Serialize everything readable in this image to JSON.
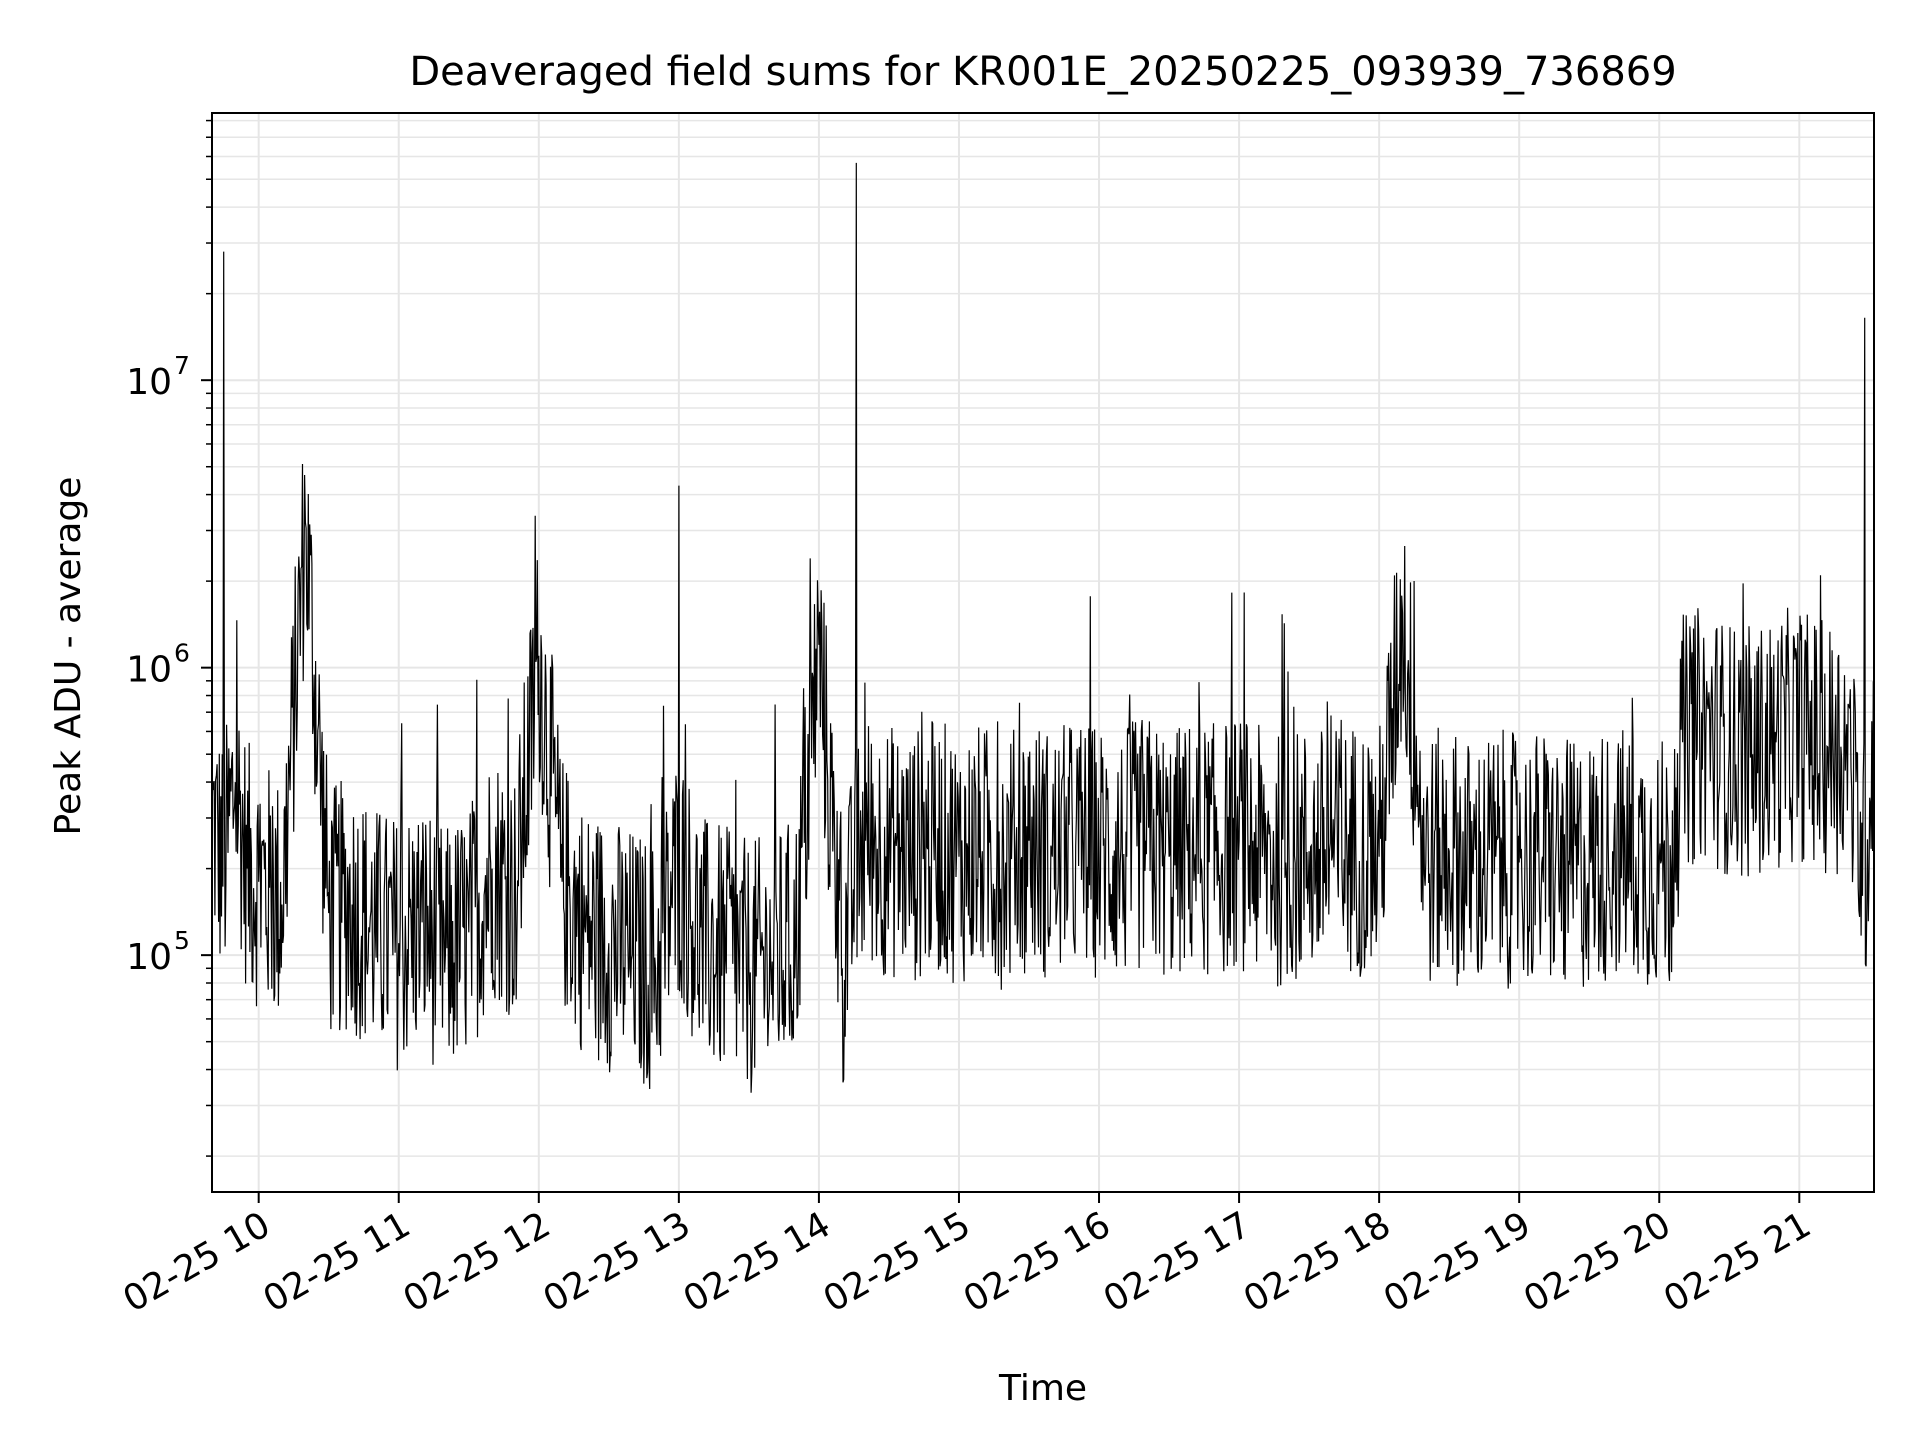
{
  "chart_data": {
    "type": "line",
    "title": "Deaveraged field sums for KR001E_20250225_093939_736869",
    "xlabel": "Time",
    "ylabel": "Peak ADU - average",
    "y_scale": "log",
    "ylim": [
      15000,
      85000000
    ],
    "xlim": [
      "2025-02-25 09:40",
      "2025-02-25 21:32"
    ],
    "x_ticks": [
      {
        "value": "2025-02-25 10:00",
        "label": "02-25 10"
      },
      {
        "value": "2025-02-25 11:00",
        "label": "02-25 11"
      },
      {
        "value": "2025-02-25 12:00",
        "label": "02-25 12"
      },
      {
        "value": "2025-02-25 13:00",
        "label": "02-25 13"
      },
      {
        "value": "2025-02-25 14:00",
        "label": "02-25 14"
      },
      {
        "value": "2025-02-25 15:00",
        "label": "02-25 15"
      },
      {
        "value": "2025-02-25 16:00",
        "label": "02-25 16"
      },
      {
        "value": "2025-02-25 17:00",
        "label": "02-25 17"
      },
      {
        "value": "2025-02-25 18:00",
        "label": "02-25 18"
      },
      {
        "value": "2025-02-25 19:00",
        "label": "02-25 19"
      },
      {
        "value": "2025-02-25 20:00",
        "label": "02-25 20"
      },
      {
        "value": "2025-02-25 21:00",
        "label": "02-25 21"
      }
    ],
    "y_ticks": [
      {
        "value": 100000,
        "base": "10",
        "exp": "5"
      },
      {
        "value": 1000000,
        "base": "10",
        "exp": "6"
      },
      {
        "value": 10000000,
        "base": "10",
        "exp": "7"
      }
    ],
    "grid": true,
    "line_color": "#000000",
    "grid_color": "#e6e6e6",
    "series": [
      {
        "x": [
          "2025-02-25 09:40",
          "2025-02-25 09:45",
          "2025-02-25 09:50",
          "2025-02-25 09:55",
          "2025-02-25 10:00",
          "2025-02-25 10:10",
          "2025-02-25 10:20",
          "2025-02-25 10:30",
          "2025-02-25 10:40",
          "2025-02-25 10:50",
          "2025-02-25 11:00",
          "2025-02-25 11:10",
          "2025-02-25 11:20",
          "2025-02-25 11:30",
          "2025-02-25 11:40",
          "2025-02-25 11:50",
          "2025-02-25 12:00",
          "2025-02-25 12:10",
          "2025-02-25 12:20",
          "2025-02-25 12:30",
          "2025-02-25 12:40",
          "2025-02-25 12:50",
          "2025-02-25 13:00",
          "2025-02-25 13:10",
          "2025-02-25 13:20",
          "2025-02-25 13:30",
          "2025-02-25 13:40",
          "2025-02-25 13:50",
          "2025-02-25 14:00",
          "2025-02-25 14:10",
          "2025-02-25 14:16",
          "2025-02-25 14:20",
          "2025-02-25 14:30",
          "2025-02-25 14:40",
          "2025-02-25 14:50",
          "2025-02-25 15:00",
          "2025-02-25 15:10",
          "2025-02-25 15:20",
          "2025-02-25 15:30",
          "2025-02-25 15:40",
          "2025-02-25 15:50",
          "2025-02-25 16:00",
          "2025-02-25 16:10",
          "2025-02-25 16:20",
          "2025-02-25 16:30",
          "2025-02-25 16:40",
          "2025-02-25 16:50",
          "2025-02-25 17:00",
          "2025-02-25 17:10",
          "2025-02-25 17:20",
          "2025-02-25 17:30",
          "2025-02-25 17:40",
          "2025-02-25 17:50",
          "2025-02-25 18:00",
          "2025-02-25 18:10",
          "2025-02-25 18:20",
          "2025-02-25 18:30",
          "2025-02-25 18:40",
          "2025-02-25 18:50",
          "2025-02-25 19:00",
          "2025-02-25 19:10",
          "2025-02-25 19:20",
          "2025-02-25 19:30",
          "2025-02-25 19:40",
          "2025-02-25 19:50",
          "2025-02-25 20:00",
          "2025-02-25 20:05",
          "2025-02-25 20:10",
          "2025-02-25 20:20",
          "2025-02-25 20:30",
          "2025-02-25 20:40",
          "2025-02-25 20:50",
          "2025-02-25 21:00",
          "2025-02-25 21:10",
          "2025-02-25 21:20",
          "2025-02-25 21:28",
          "2025-02-25 21:32"
        ],
        "y": [
          300000,
          28000000,
          400000,
          200000,
          180000,
          150000,
          3200000,
          140000,
          150000,
          120000,
          110000,
          130000,
          100000,
          120000,
          200000,
          160000,
          1100000,
          180000,
          120000,
          110000,
          100000,
          90000,
          4300000,
          110000,
          100000,
          90000,
          95000,
          110000,
          1200000,
          90000,
          57000000,
          250000,
          230000,
          220000,
          240000,
          220000,
          230000,
          210000,
          250000,
          220000,
          240000,
          230000,
          220000,
          250000,
          220000,
          240000,
          230000,
          250000,
          220000,
          210000,
          230000,
          220000,
          240000,
          220000,
          1550000,
          210000,
          230000,
          200000,
          220000,
          210000,
          220000,
          200000,
          210000,
          230000,
          220000,
          210000,
          200000,
          550000,
          600000,
          520000,
          500000,
          550000,
          600000,
          520000,
          550000,
          16500000,
          650000
        ]
      }
    ]
  }
}
